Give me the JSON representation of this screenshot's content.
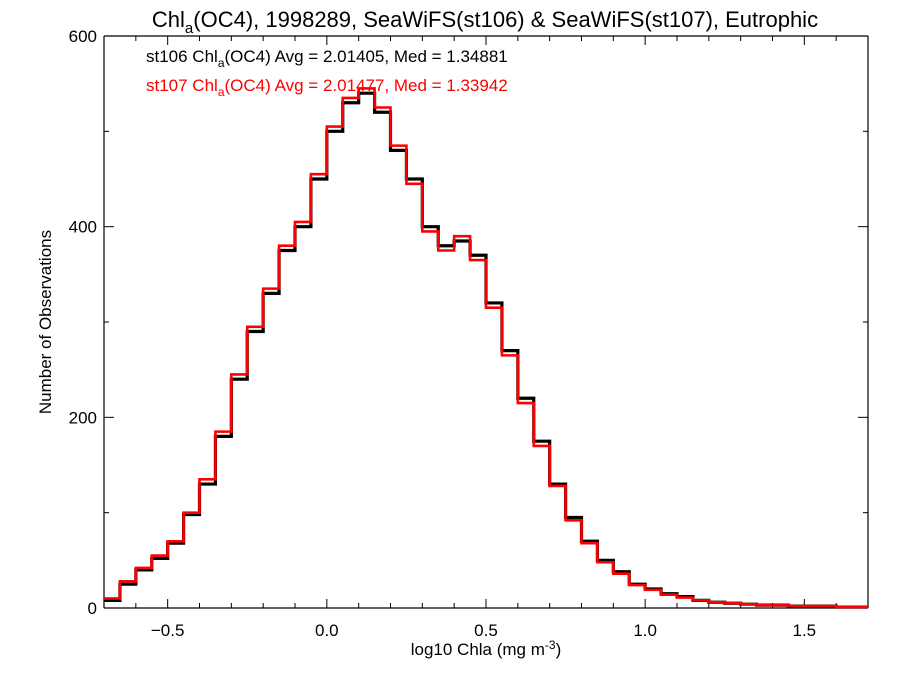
{
  "chart_data": {
    "type": "line",
    "title": {
      "main": "Chl",
      "sub": "a",
      "rest": "(OC4), 1998289, SeaWiFS(st106) & SeaWiFS(st107), Eutrophic"
    },
    "xlabel": {
      "main": "log10 Chla (mg m",
      "sup": "-3",
      "end": ")"
    },
    "ylabel": "Number of Observations",
    "xlim": [
      -0.7,
      1.7
    ],
    "ylim": [
      0,
      600
    ],
    "xticks": [
      -0.5,
      0.0,
      0.5,
      1.0,
      1.5
    ],
    "xtick_labels": [
      "−0.5",
      "0.0",
      "0.5",
      "1.0",
      "1.5"
    ],
    "yticks": [
      0,
      200,
      400,
      600
    ],
    "ytick_labels": [
      "0",
      "200",
      "400",
      "600"
    ],
    "grid": false,
    "annotations": [
      {
        "prefix": "st106 Chl",
        "sub": "a",
        "suffix": "(OC4) Avg = 2.01405, Med = 1.34881",
        "color": "#000000"
      },
      {
        "prefix": "st107 Chl",
        "sub": "a",
        "suffix": "(OC4) Avg = 2.01477, Med = 1.33942",
        "color": "#ff0000"
      }
    ],
    "series": [
      {
        "color": "#000000",
        "x": [
          -0.7,
          -0.65,
          -0.6,
          -0.55,
          -0.5,
          -0.45,
          -0.4,
          -0.35,
          -0.3,
          -0.25,
          -0.2,
          -0.15,
          -0.1,
          -0.05,
          0.0,
          0.05,
          0.1,
          0.15,
          0.2,
          0.25,
          0.3,
          0.35,
          0.4,
          0.45,
          0.5,
          0.55,
          0.6,
          0.65,
          0.7,
          0.75,
          0.8,
          0.85,
          0.9,
          0.95,
          1.0,
          1.05,
          1.1,
          1.15,
          1.2,
          1.25,
          1.3,
          1.35,
          1.4,
          1.45,
          1.5,
          1.55,
          1.6,
          1.65,
          1.7
        ],
        "values": [
          8,
          25,
          40,
          52,
          68,
          98,
          130,
          180,
          240,
          290,
          330,
          375,
          400,
          450,
          500,
          530,
          540,
          520,
          480,
          450,
          400,
          380,
          385,
          370,
          320,
          270,
          220,
          175,
          130,
          95,
          70,
          50,
          38,
          25,
          20,
          15,
          12,
          8,
          6,
          5,
          4,
          3,
          3,
          2,
          2,
          2,
          1,
          1,
          1
        ]
      },
      {
        "color": "#ff0000",
        "x": [
          -0.7,
          -0.65,
          -0.6,
          -0.55,
          -0.5,
          -0.45,
          -0.4,
          -0.35,
          -0.3,
          -0.25,
          -0.2,
          -0.15,
          -0.1,
          -0.05,
          0.0,
          0.05,
          0.1,
          0.15,
          0.2,
          0.25,
          0.3,
          0.35,
          0.4,
          0.45,
          0.5,
          0.55,
          0.6,
          0.65,
          0.7,
          0.75,
          0.8,
          0.85,
          0.9,
          0.95,
          1.0,
          1.05,
          1.1,
          1.15,
          1.2,
          1.25,
          1.3,
          1.35,
          1.4,
          1.45,
          1.5,
          1.55,
          1.6,
          1.65,
          1.7
        ],
        "values": [
          10,
          28,
          42,
          55,
          70,
          100,
          135,
          185,
          245,
          295,
          335,
          380,
          405,
          455,
          505,
          535,
          545,
          525,
          485,
          445,
          395,
          375,
          390,
          365,
          315,
          265,
          215,
          170,
          128,
          92,
          68,
          48,
          36,
          24,
          19,
          14,
          11,
          8,
          6,
          5,
          4,
          3,
          3,
          2,
          2,
          2,
          1,
          1,
          1
        ]
      }
    ]
  }
}
